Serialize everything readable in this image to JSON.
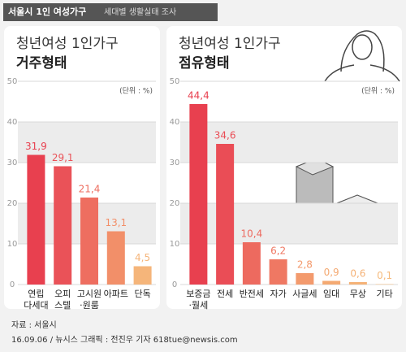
{
  "header": {
    "title": "서울시 1인 여성가구",
    "subtitle": "세대별 생활실태 조사"
  },
  "chart_data": [
    {
      "type": "bar",
      "title": "청년여성 1인가구",
      "subtitle": "거주형태",
      "unit": "(단위 : %)",
      "categories": [
        [
          "연립",
          "다세대"
        ],
        [
          "오피",
          "스텔"
        ],
        [
          "고시원",
          "·원룸"
        ],
        [
          "아파트"
        ],
        [
          "단독"
        ]
      ],
      "values": [
        31.9,
        29.1,
        21.4,
        13.1,
        4.5
      ],
      "value_labels": [
        "31,9",
        "29,1",
        "21,4",
        "13,1",
        "4,5"
      ],
      "colors": [
        "#e8404f",
        "#ea5258",
        "#ee6e60",
        "#f28f69",
        "#f5b57a"
      ],
      "ylim": [
        0,
        50
      ],
      "yticks": [
        0,
        10,
        20,
        30,
        40,
        50
      ],
      "grid": true
    },
    {
      "type": "bar",
      "title": "청년여성 1인가구",
      "subtitle": "점유형태",
      "unit": "(단위 : %)",
      "categories": [
        [
          "보증금",
          "·월세"
        ],
        [
          "전세"
        ],
        [
          "반전세"
        ],
        [
          "자가"
        ],
        [
          "사글세"
        ],
        [
          "임대"
        ],
        [
          "무상"
        ],
        [
          "기타"
        ]
      ],
      "values": [
        44.4,
        34.6,
        10.4,
        6.2,
        2.8,
        0.9,
        0.6,
        0.1
      ],
      "value_labels": [
        "44,4",
        "34,6",
        "10,4",
        "6,2",
        "2,8",
        "0,9",
        "0,6",
        "0,1"
      ],
      "colors": [
        "#e8404f",
        "#ea4d56",
        "#ed6a5f",
        "#ef7863",
        "#f39a6d",
        "#f4a972",
        "#f5b277",
        "#f6bb7d"
      ],
      "ylim": [
        0,
        50
      ],
      "yticks": [
        0,
        10,
        20,
        30,
        40,
        50
      ],
      "grid": true
    }
  ],
  "source": {
    "line1": "자료 : 서울시",
    "line2": "16.09.06 / 뉴시스 그래픽 : 전진우 기자 618tue@newsis.com"
  }
}
